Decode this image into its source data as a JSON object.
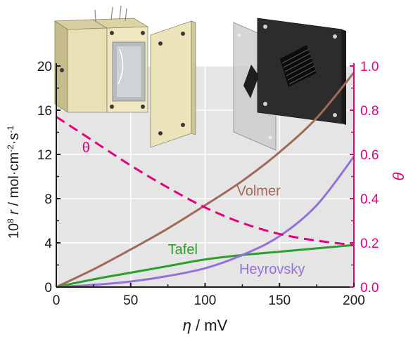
{
  "chart_data": {
    "type": "line",
    "xlabel_symbol": "η",
    "xlabel_unit": " / mV",
    "xlim": [
      0,
      200
    ],
    "x_ticks": [
      "0",
      "50",
      "100",
      "150",
      "200"
    ],
    "x_tick_values": [
      0,
      50,
      100,
      150,
      200
    ],
    "y_left": {
      "label_prefix": "10",
      "label_exp": "8",
      "label_symbol": "r",
      "label_unit": " / mol·cm",
      "label_unit_exp": "-2",
      "label_unit_tail": "·s",
      "label_unit_tail_exp": "-1",
      "lim": [
        0,
        20
      ],
      "ticks": [
        "0",
        "4",
        "8",
        "12",
        "16",
        "20"
      ],
      "tick_values": [
        0,
        4,
        8,
        12,
        16,
        20
      ]
    },
    "y_right": {
      "label": "θ",
      "lim": [
        0,
        1
      ],
      "ticks": [
        "0.0",
        "0.2",
        "0.4",
        "0.6",
        "0.8",
        "1.0"
      ],
      "tick_values": [
        0.0,
        0.2,
        0.4,
        0.6,
        0.8,
        1.0
      ],
      "color": "#e6007e"
    },
    "grid": true,
    "series": [
      {
        "name": "Volmer",
        "axis": "left",
        "color": "#a0695a",
        "style": "solid",
        "x": [
          0,
          25,
          50,
          75,
          100,
          125,
          150,
          175,
          200
        ],
        "y": [
          0,
          1.6,
          3.4,
          5.3,
          7.4,
          9.6,
          12.2,
          15.3,
          19.4
        ]
      },
      {
        "name": "Tafel",
        "axis": "left",
        "color": "#2aa02a",
        "style": "solid",
        "x": [
          0,
          25,
          50,
          75,
          100,
          125,
          150,
          175,
          200
        ],
        "y": [
          0,
          0.7,
          1.3,
          1.9,
          2.5,
          2.9,
          3.2,
          3.5,
          3.8
        ]
      },
      {
        "name": "Heyrovsky",
        "axis": "left",
        "color": "#9370db",
        "style": "solid",
        "x": [
          0,
          25,
          50,
          75,
          100,
          125,
          150,
          175,
          200
        ],
        "y": [
          0,
          0.2,
          0.5,
          1.0,
          1.7,
          2.9,
          4.6,
          7.4,
          11.8
        ]
      },
      {
        "name": "θ",
        "axis": "right",
        "color": "#e6007e",
        "style": "dashed",
        "x": [
          0,
          25,
          50,
          75,
          100,
          125,
          150,
          175,
          200
        ],
        "y": [
          0.77,
          0.66,
          0.55,
          0.45,
          0.36,
          0.29,
          0.24,
          0.21,
          0.19
        ]
      }
    ],
    "annotations": [
      {
        "text": "θ",
        "color": "#e6007e",
        "x": 20,
        "y_right": 0.61
      },
      {
        "text": "Volmer",
        "color": "#a0695a",
        "x": 136,
        "y_left": 8.3
      },
      {
        "text": "Tafel",
        "color": "#2aa02a",
        "x": 85,
        "y_left": 3.0
      },
      {
        "text": "Heyrovsky",
        "color": "#9370db",
        "x": 145,
        "y_left": 1.2
      }
    ],
    "plot_background": "#e5e5e5"
  }
}
